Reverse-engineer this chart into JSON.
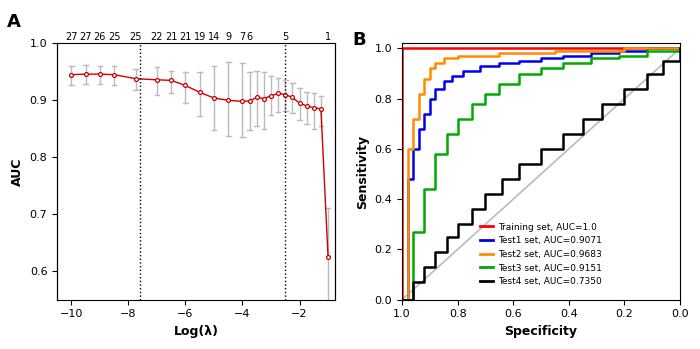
{
  "panel_A": {
    "title_label": "A",
    "xlabel": "Log(λ)",
    "ylabel": "AUC",
    "top_labels": [
      "27",
      "27",
      "26",
      "25",
      "25",
      "22",
      "21",
      "21",
      "19",
      "14",
      "9",
      "7",
      "6",
      "5",
      "1"
    ],
    "top_tick_x": [
      -10.0,
      -9.5,
      -9.0,
      -8.5,
      -7.75,
      -7.0,
      -6.5,
      -6.0,
      -5.5,
      -5.0,
      -4.5,
      -4.0,
      -3.75,
      -2.5,
      -1.0
    ],
    "log_lambda": [
      -10.0,
      -9.5,
      -9.0,
      -8.5,
      -7.75,
      -7.0,
      -6.5,
      -6.0,
      -5.5,
      -5.0,
      -4.5,
      -4.0,
      -3.75,
      -3.5,
      -3.25,
      -3.0,
      -2.75,
      -2.5,
      -2.25,
      -2.0,
      -1.75,
      -1.5,
      -1.25,
      -1.0
    ],
    "auc_mean": [
      0.945,
      0.946,
      0.946,
      0.945,
      0.938,
      0.936,
      0.935,
      0.926,
      0.914,
      0.904,
      0.9,
      0.898,
      0.899,
      0.905,
      0.903,
      0.908,
      0.912,
      0.91,
      0.905,
      0.895,
      0.89,
      0.887,
      0.885,
      0.625
    ],
    "auc_upper": [
      0.96,
      0.962,
      0.961,
      0.96,
      0.955,
      0.958,
      0.952,
      0.95,
      0.95,
      0.96,
      0.968,
      0.965,
      0.95,
      0.952,
      0.95,
      0.942,
      0.94,
      0.935,
      0.93,
      0.922,
      0.915,
      0.912,
      0.908,
      0.71
    ],
    "auc_lower": [
      0.927,
      0.928,
      0.928,
      0.927,
      0.918,
      0.91,
      0.912,
      0.896,
      0.872,
      0.848,
      0.838,
      0.835,
      0.848,
      0.855,
      0.85,
      0.875,
      0.88,
      0.882,
      0.878,
      0.865,
      0.858,
      0.85,
      0.855,
      0.535
    ],
    "vline1": -7.6,
    "vline2": -2.5,
    "ylim": [
      0.55,
      1.0
    ],
    "xlim": [
      -10.5,
      -0.75
    ],
    "yticks": [
      0.6,
      0.7,
      0.8,
      0.9,
      1.0
    ],
    "xticks": [
      -10,
      -8,
      -6,
      -4,
      -2
    ],
    "point_color": "#CC0000",
    "error_color": "#BBBBBB",
    "vline_color": "black"
  },
  "panel_B": {
    "title_label": "B",
    "xlabel": "Specificity",
    "ylabel": "Sensitivity",
    "diagonal_color": "#BBBBBB",
    "curves": [
      {
        "label": "Training set, AUC=1.0",
        "color": "#FF0000",
        "fpr": [
          0.0,
          0.0,
          1.0
        ],
        "tpr": [
          0.0,
          1.0,
          1.0
        ]
      },
      {
        "label": "Test1 set, AUC=0.9071",
        "color": "#0000EE",
        "fpr": [
          0.0,
          0.02,
          0.04,
          0.06,
          0.08,
          0.1,
          0.12,
          0.15,
          0.18,
          0.22,
          0.28,
          0.35,
          0.42,
          0.5,
          0.58,
          0.68,
          0.78,
          0.88,
          1.0
        ],
        "tpr": [
          0.0,
          0.48,
          0.6,
          0.68,
          0.74,
          0.8,
          0.84,
          0.87,
          0.89,
          0.91,
          0.93,
          0.94,
          0.95,
          0.96,
          0.97,
          0.98,
          0.99,
          1.0,
          1.0
        ]
      },
      {
        "label": "Test2 set, AUC=0.9683",
        "color": "#FF8C00",
        "fpr": [
          0.0,
          0.02,
          0.04,
          0.06,
          0.08,
          0.1,
          0.12,
          0.15,
          0.2,
          0.28,
          0.35,
          0.45,
          0.55,
          0.68,
          0.8,
          1.0
        ],
        "tpr": [
          0.0,
          0.6,
          0.72,
          0.82,
          0.88,
          0.92,
          0.94,
          0.96,
          0.97,
          0.97,
          0.98,
          0.98,
          0.99,
          0.99,
          1.0,
          1.0
        ]
      },
      {
        "label": "Test3 set, AUC=0.9151",
        "color": "#00AA00",
        "fpr": [
          0.0,
          0.04,
          0.08,
          0.12,
          0.16,
          0.2,
          0.25,
          0.3,
          0.35,
          0.42,
          0.5,
          0.58,
          0.68,
          0.78,
          0.88,
          1.0
        ],
        "tpr": [
          0.0,
          0.27,
          0.44,
          0.58,
          0.66,
          0.72,
          0.78,
          0.82,
          0.86,
          0.9,
          0.92,
          0.94,
          0.96,
          0.97,
          0.99,
          1.0
        ]
      },
      {
        "label": "Test4 set, AUC=0.7350",
        "color": "#000000",
        "fpr": [
          0.0,
          0.04,
          0.08,
          0.12,
          0.16,
          0.2,
          0.25,
          0.3,
          0.36,
          0.42,
          0.5,
          0.58,
          0.65,
          0.72,
          0.8,
          0.88,
          0.94,
          1.0
        ],
        "tpr": [
          0.0,
          0.07,
          0.13,
          0.19,
          0.25,
          0.3,
          0.36,
          0.42,
          0.48,
          0.54,
          0.6,
          0.66,
          0.72,
          0.78,
          0.84,
          0.9,
          0.95,
          1.0
        ]
      }
    ],
    "xlim": [
      1.0,
      0.0
    ],
    "ylim": [
      0.0,
      1.02
    ],
    "xticks": [
      1.0,
      0.8,
      0.6,
      0.4,
      0.2,
      0.0
    ],
    "yticks": [
      0.0,
      0.2,
      0.4,
      0.6,
      0.8,
      1.0
    ]
  }
}
